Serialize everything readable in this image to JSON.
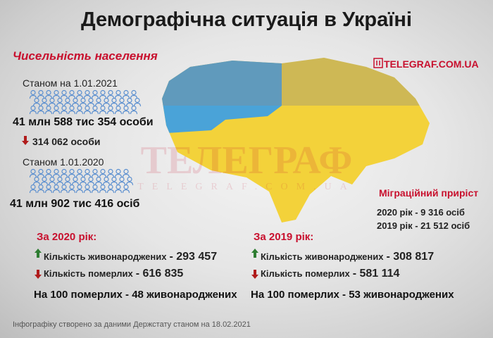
{
  "header": {
    "title": "Демографічна ситуація в Україні",
    "brand": "TELEGRAF.COM.UA"
  },
  "watermark": {
    "main": "ТЕЛЕГРАФ",
    "sub": "TELEGRAF.COM.UA"
  },
  "population": {
    "heading": "Чисельність населення",
    "current": {
      "label": "Станом на 1.01.2021",
      "value": "41 млн 588 тис 354 особи"
    },
    "change": "314 062 особи",
    "previous": {
      "label": "Станом 1.01.2020",
      "value": "41 млн 902 тис 416 осіб"
    }
  },
  "migration": {
    "heading": "Міграційний приріст",
    "lines": [
      "2020 рік - 9 316 осіб",
      "2019 рік - 21 512 осіб"
    ]
  },
  "years": [
    {
      "heading": "За 2020 рік:",
      "births_label": "Кількість живонароджених",
      "births": "- 293 457",
      "deaths_label": "Кількість померлих",
      "deaths": "- 616 835",
      "ratio": "На 100 померлих - 48 живонароджених"
    },
    {
      "heading": "За 2019 рік:",
      "births_label": "Кількість живонароджених",
      "births": "- 308 817",
      "deaths_label": "Кількість померлих",
      "deaths": "- 581 114",
      "ratio": "На 100 померлих - 53 живонароджених"
    }
  ],
  "footer": "Інфографіку створено за даними Держстату станом на 18.02.2021"
}
